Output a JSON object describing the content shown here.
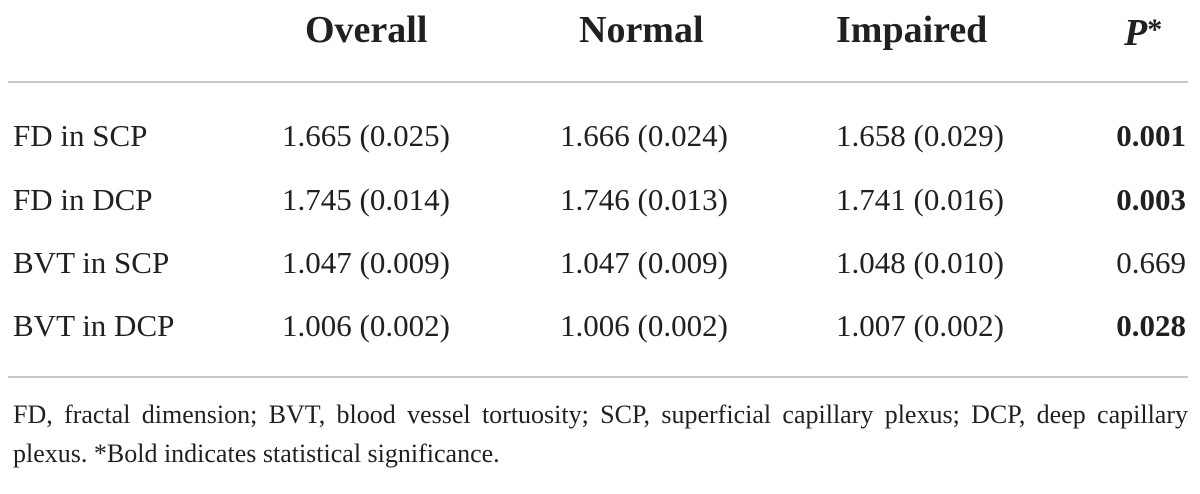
{
  "table": {
    "headers": {
      "overall": "Overall",
      "normal": "Normal",
      "impaired": "Impaired",
      "p_letter": "P",
      "p_star": "*"
    },
    "rows": [
      {
        "label": "FD in SCP",
        "overall": "1.665 (0.025)",
        "normal": "1.666 (0.024)",
        "impaired": "1.658 (0.029)",
        "p": "0.001",
        "significant": true
      },
      {
        "label": "FD in DCP",
        "overall": "1.745 (0.014)",
        "normal": "1.746 (0.013)",
        "impaired": "1.741 (0.016)",
        "p": "0.003",
        "significant": true
      },
      {
        "label": "BVT in SCP",
        "overall": "1.047 (0.009)",
        "normal": "1.047 (0.009)",
        "impaired": "1.048 (0.010)",
        "p": "0.669",
        "significant": false
      },
      {
        "label": "BVT in DCP",
        "overall": "1.006 (0.002)",
        "normal": "1.006 (0.002)",
        "impaired": "1.007 (0.002)",
        "p": "0.028",
        "significant": true
      }
    ],
    "footnote": "FD, fractal dimension; BVT, blood vessel tortuosity; SCP, superficial capillary plexus; DCP, deep capillary plexus. *Bold indicates statistical significance."
  }
}
